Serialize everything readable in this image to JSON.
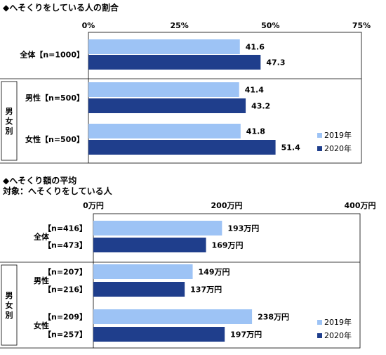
{
  "chart_data": [
    {
      "type": "bar",
      "orientation": "horizontal",
      "title": "◆へそくりをしている人の割合",
      "subtitle": "",
      "unit": "",
      "ticks": [
        "0%",
        "25%",
        "50%",
        "75%"
      ],
      "xlim": [
        0,
        75
      ],
      "group_label": "男女別",
      "categories": [
        "全体【n=1000】",
        "男性【n=500】",
        "女性【n=500】"
      ],
      "series": [
        {
          "name": "2019年",
          "color": "#9dc3f5",
          "values": [
            41.6,
            41.4,
            41.8
          ],
          "labels": [
            "41.6",
            "41.4",
            "41.8"
          ]
        },
        {
          "name": "2020年",
          "color": "#1f3e8c",
          "values": [
            47.3,
            43.2,
            51.4
          ],
          "labels": [
            "47.3",
            "43.2",
            "51.4"
          ]
        }
      ],
      "legend": "bottom-right"
    },
    {
      "type": "bar",
      "orientation": "horizontal",
      "title": "◆へそくり額の平均",
      "subtitle": "対象：へそくりをしている人",
      "unit": "万円",
      "ticks": [
        "0万円",
        "200万円",
        "400万円"
      ],
      "xlim": [
        0,
        400
      ],
      "group_label": "男女別",
      "categories": [
        "全体",
        "男性",
        "女性"
      ],
      "n_labels": [
        [
          "【n=416】",
          "【n=473】"
        ],
        [
          "【n=207】",
          "【n=216】"
        ],
        [
          "【n=209】",
          "【n=257】"
        ]
      ],
      "series": [
        {
          "name": "2019年",
          "color": "#9dc3f5",
          "values": [
            193,
            149,
            238
          ],
          "labels": [
            "193万円",
            "149万円",
            "238万円"
          ]
        },
        {
          "name": "2020年",
          "color": "#1f3e8c",
          "values": [
            169,
            137,
            197
          ],
          "labels": [
            "169万円",
            "137万円",
            "197万円"
          ]
        }
      ],
      "legend": "bottom-right"
    }
  ]
}
